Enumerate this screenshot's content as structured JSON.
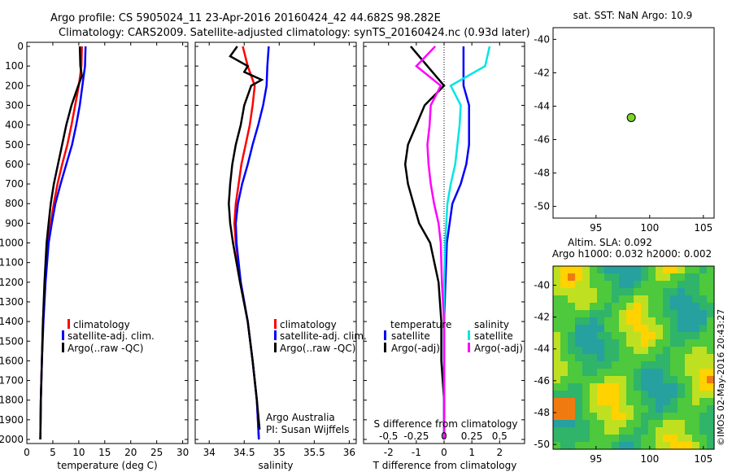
{
  "header": {
    "line1": "Argo profile: CS 5905024_11 23-Apr-2016 20160424_42 44.682S 98.282E",
    "line2": "Climatology: CARS2009. Satellite-adjusted climatology: synTS_20160424.nc (0.93d later)"
  },
  "colors": {
    "climatology": "#ff0000",
    "satellite": "#0000ff",
    "argo": "#000000",
    "satellite_s": "#00e5e5",
    "argo_s": "#ff00ff"
  },
  "chart_data": [
    {
      "id": "temperature",
      "type": "line",
      "xlabel": "temperature (deg C)",
      "ylabel": "",
      "xlim": [
        0,
        31
      ],
      "ylim": [
        2050,
        0
      ],
      "xticks": [
        "0",
        "5",
        "10",
        "15",
        "20",
        "25",
        "30"
      ],
      "yticks": [
        "0",
        "100",
        "200",
        "300",
        "400",
        "500",
        "600",
        "700",
        "800",
        "900",
        "1000",
        "1100",
        "1200",
        "1300",
        "1400",
        "1500",
        "1600",
        "1700",
        "1800",
        "1900",
        "2000"
      ],
      "legend": [
        "climatology",
        "satellite-adj. clim.",
        "Argo(..raw -QC)"
      ],
      "series": [
        {
          "name": "climatology",
          "depth": [
            0,
            100,
            200,
            300,
            400,
            500,
            600,
            700,
            800,
            900,
            1000,
            1200,
            1400,
            1600,
            1800,
            2000
          ],
          "values": [
            10.6,
            10.5,
            10.0,
            9.3,
            8.6,
            7.8,
            6.8,
            5.9,
            5.2,
            4.6,
            4.1,
            3.5,
            3.1,
            2.9,
            2.7,
            2.6
          ]
        },
        {
          "name": "satellite-adj. clim.",
          "depth": [
            0,
            100,
            200,
            300,
            400,
            500,
            600,
            700,
            800,
            900,
            1000,
            1200,
            1400,
            1600,
            1800,
            2000
          ],
          "values": [
            11.3,
            11.2,
            10.7,
            10.2,
            9.5,
            8.7,
            7.6,
            6.5,
            5.5,
            4.8,
            4.2,
            3.6,
            3.2,
            2.9,
            2.7,
            2.6
          ]
        },
        {
          "name": "Argo(..raw -QC)",
          "depth": [
            0,
            100,
            150,
            200,
            300,
            400,
            500,
            600,
            700,
            800,
            900,
            1000,
            1200,
            1400,
            1600,
            1800,
            2000
          ],
          "values": [
            10.2,
            10.3,
            10.6,
            9.9,
            8.6,
            7.6,
            6.8,
            6.0,
            5.2,
            4.6,
            4.2,
            3.8,
            3.4,
            3.1,
            2.9,
            2.7,
            2.6
          ]
        }
      ]
    },
    {
      "id": "salinity",
      "type": "line",
      "xlabel": "salinity",
      "xlim": [
        33.8,
        36.1
      ],
      "ylim": [
        2050,
        0
      ],
      "xticks": [
        "34",
        "34.5",
        "35",
        "35.5",
        "36"
      ],
      "legend": [
        "climatology",
        "satellite-adj. clim.",
        "Argo(..raw -QC)"
      ],
      "annotation": [
        "Argo Australia",
        "PI: Susan Wijffels"
      ],
      "series": [
        {
          "name": "climatology",
          "depth": [
            0,
            100,
            200,
            300,
            400,
            500,
            600,
            700,
            800,
            900,
            1000,
            1200,
            1400,
            1600,
            1800,
            2000
          ],
          "values": [
            34.48,
            34.55,
            34.65,
            34.62,
            34.58,
            34.52,
            34.46,
            34.42,
            34.38,
            34.36,
            34.38,
            34.45,
            34.55,
            34.62,
            34.68,
            34.71
          ]
        },
        {
          "name": "satellite-adj. clim.",
          "depth": [
            0,
            100,
            200,
            300,
            400,
            500,
            600,
            700,
            800,
            900,
            1000,
            1200,
            1400,
            1600,
            1800,
            2000
          ],
          "values": [
            34.85,
            34.83,
            34.82,
            34.77,
            34.7,
            34.62,
            34.55,
            34.47,
            34.41,
            34.38,
            34.39,
            34.45,
            34.55,
            34.62,
            34.68,
            34.71
          ]
        },
        {
          "name": "Argo(..raw -QC)",
          "depth": [
            0,
            50,
            100,
            130,
            170,
            200,
            300,
            400,
            500,
            600,
            700,
            800,
            900,
            1000,
            1200,
            1400,
            1600,
            1800,
            1950
          ],
          "values": [
            34.4,
            34.3,
            34.55,
            34.5,
            34.75,
            34.6,
            34.5,
            34.45,
            34.38,
            34.33,
            34.3,
            34.28,
            34.3,
            34.34,
            34.44,
            34.55,
            34.62,
            34.68,
            34.72
          ]
        }
      ]
    },
    {
      "id": "difference",
      "type": "line",
      "xlabel": "T difference from climatology",
      "xlabel2": "S difference from climatology",
      "xlim": [
        -2.9,
        2.9
      ],
      "ylim": [
        2050,
        0
      ],
      "xticks": [
        "-2",
        "-1",
        "0",
        "1",
        "2"
      ],
      "xticks2": [
        "-0.5",
        "-0.25",
        "0",
        "0.25",
        "0.5"
      ],
      "legend_groups": [
        {
          "title": "temperature",
          "items": [
            "satellite",
            "Argo(-adj)"
          ]
        },
        {
          "title": "salinity",
          "items": [
            "satellite",
            "Argo(-adj)"
          ]
        }
      ],
      "series": [
        {
          "name": "temperature satellite",
          "depth": [
            0,
            100,
            200,
            300,
            400,
            500,
            600,
            700,
            800,
            900,
            1000,
            1200,
            1400,
            1600,
            1800,
            2000
          ],
          "values": [
            0.7,
            0.7,
            0.7,
            0.9,
            0.9,
            0.9,
            0.8,
            0.6,
            0.3,
            0.2,
            0.1,
            0.05,
            0.0,
            0.0,
            0.0,
            0.0
          ]
        },
        {
          "name": "temperature Argo(-adj)",
          "depth": [
            0,
            100,
            200,
            300,
            400,
            500,
            600,
            700,
            800,
            900,
            1000,
            1200,
            1400,
            1600,
            1800,
            2000
          ],
          "values": [
            -1.2,
            -0.6,
            0.0,
            -0.7,
            -1.0,
            -1.3,
            -1.4,
            -1.3,
            -1.1,
            -0.9,
            -0.5,
            -0.2,
            -0.1,
            -0.1,
            0.0,
            0.0
          ]
        },
        {
          "name": "salinity satellite",
          "depth": [
            0,
            100,
            200,
            300,
            400,
            500,
            600,
            700,
            800,
            900,
            1000,
            1200,
            1400,
            1600,
            1800,
            2000
          ],
          "values": [
            0.41,
            0.37,
            0.06,
            0.15,
            0.14,
            0.12,
            0.1,
            0.06,
            0.03,
            0.02,
            0.01,
            0.0,
            0.0,
            0.0,
            0.0,
            0.0
          ]
        },
        {
          "name": "salinity Argo(-adj)",
          "depth": [
            0,
            100,
            200,
            300,
            400,
            500,
            600,
            700,
            800,
            900,
            1000,
            1200,
            1400,
            1600,
            1800,
            2000
          ],
          "values": [
            -0.08,
            -0.25,
            -0.03,
            -0.12,
            -0.13,
            -0.15,
            -0.14,
            -0.12,
            -0.09,
            -0.05,
            -0.03,
            -0.02,
            0.0,
            0.0,
            0.0,
            0.0
          ]
        }
      ]
    },
    {
      "id": "sst-map",
      "type": "scatter",
      "title": "sat. SST: NaN Argo: 10.9",
      "xlim": [
        91,
        106
      ],
      "ylim": [
        -50.7,
        -39.3
      ],
      "xticks": [
        "95",
        "100",
        "105"
      ],
      "yticks": [
        "-40",
        "-42",
        "-44",
        "-46",
        "-48",
        "-50"
      ],
      "points": [
        {
          "x": 98.282,
          "y": -44.682
        }
      ]
    },
    {
      "id": "sla-map",
      "type": "heatmap",
      "title": "Altim. SLA: 0.092",
      "title2": "Argo h1000: 0.032 h2000: 0.002",
      "xlim": [
        91,
        106
      ],
      "ylim": [
        -50.3,
        -38.8
      ],
      "xticks": [
        "95",
        "100",
        "105"
      ],
      "yticks": [
        "-40",
        "-42",
        "-44",
        "-46",
        "-48",
        "-50"
      ]
    }
  ],
  "footer_stamp": "©IMOS 02-May-2016 20:43:27"
}
